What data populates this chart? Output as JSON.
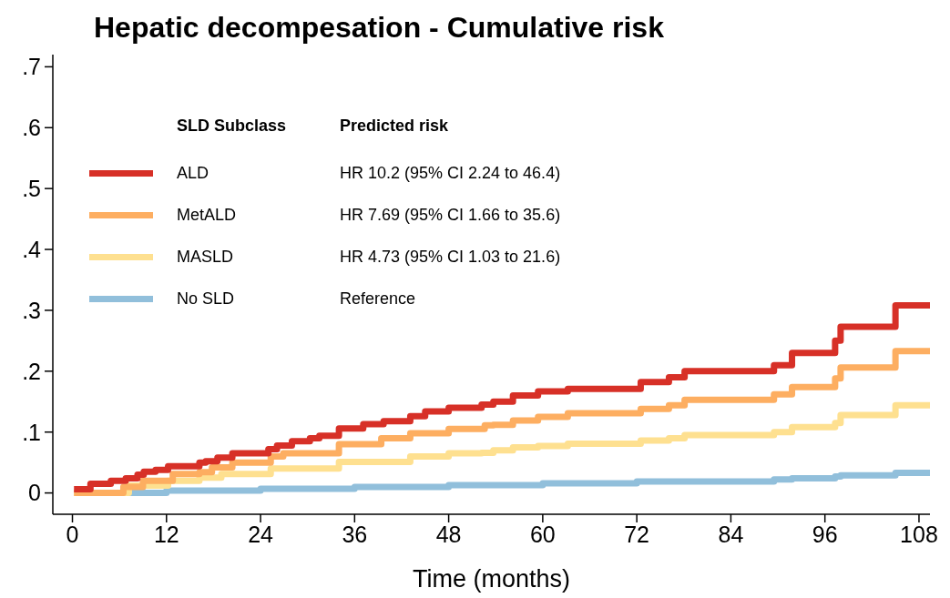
{
  "chart_data": {
    "type": "step",
    "title": "Hepatic decompesation - Cumulative risk",
    "xlabel": "Time (months)",
    "legend_title": "SLD Subclass",
    "legend": "top left",
    "line_style": "solid",
    "marker": "none",
    "annotations": [
      "Predicted risk",
      "HR 10.2 (95% CI 2.24 to 46.4)",
      "HR 7.69 (95% CI 1.66 to 35.6)",
      "HR 4.73 (95% CI 1.03 to 21.6)",
      "Reference"
    ],
    "xlim": [
      -2.5,
      109.4
    ],
    "xticks": [
      0,
      12,
      24,
      36,
      48,
      60,
      72,
      84,
      96,
      108
    ],
    "ylim": [
      -0.035,
      0.72
    ],
    "yticks": [
      0,
      {
        "value": 0.1,
        "label": ".1"
      },
      {
        "value": 0.2,
        "label": ".2"
      },
      {
        "value": 0.3,
        "label": ".3"
      },
      {
        "value": 0.4,
        "label": ".4"
      },
      {
        "value": 0.5,
        "label": ".5"
      },
      {
        "value": 0.6,
        "label": ".6"
      },
      {
        "value": 0.7,
        "label": ".7"
      }
    ],
    "series": [
      {
        "name": "ALD",
        "color": "#d73027",
        "x": [
          0.2,
          2.3,
          4.9,
          6.8,
          8.3,
          9.1,
          10.6,
          12.2,
          16.2,
          17,
          18.5,
          20.4,
          25,
          26.1,
          28,
          30.3,
          31.5,
          34,
          37.1,
          39.7,
          43.1,
          45,
          48,
          52.2,
          53.7,
          56.2,
          59.4,
          63.2,
          72.5,
          76.1,
          78.1,
          89.5,
          91.8,
          97.3,
          98,
          105,
          109.4
        ],
        "values": [
          0.006,
          0.015,
          0.02,
          0.024,
          0.03,
          0.035,
          0.038,
          0.044,
          0.05,
          0.052,
          0.058,
          0.065,
          0.072,
          0.078,
          0.085,
          0.09,
          0.094,
          0.106,
          0.113,
          0.118,
          0.126,
          0.134,
          0.14,
          0.145,
          0.15,
          0.16,
          0.167,
          0.171,
          0.182,
          0.19,
          0.2,
          0.21,
          0.23,
          0.25,
          0.273,
          0.308,
          0.308
        ]
      },
      {
        "name": "MetALD",
        "color": "#fdae61",
        "x": [
          0.2,
          6.5,
          9,
          12.8,
          16.2,
          17.8,
          20.4,
          25.3,
          26.9,
          34,
          39.4,
          43.1,
          48,
          52.6,
          53.7,
          56.2,
          59.4,
          63.2,
          72.5,
          76.1,
          78.1,
          89.5,
          91.8,
          97.3,
          98,
          105,
          109.4
        ],
        "values": [
          0,
          0.01,
          0.02,
          0.031,
          0.034,
          0.042,
          0.05,
          0.06,
          0.065,
          0.08,
          0.09,
          0.098,
          0.105,
          0.111,
          0.112,
          0.119,
          0.125,
          0.131,
          0.138,
          0.144,
          0.153,
          0.162,
          0.174,
          0.188,
          0.206,
          0.233,
          0.233
        ]
      },
      {
        "name": "MASLD",
        "color": "#fee090",
        "x": [
          0.2,
          7.2,
          12.2,
          16.2,
          19,
          25.3,
          34,
          43.1,
          48,
          52.2,
          53.7,
          56.2,
          59.4,
          63.2,
          72.5,
          76.1,
          78.1,
          89.5,
          91.8,
          97.3,
          98,
          105,
          109.4
        ],
        "values": [
          0,
          0.012,
          0.02,
          0.025,
          0.031,
          0.04,
          0.051,
          0.06,
          0.065,
          0.066,
          0.07,
          0.075,
          0.077,
          0.081,
          0.086,
          0.09,
          0.095,
          0.1,
          0.108,
          0.115,
          0.128,
          0.144,
          0.144
        ]
      },
      {
        "name": "No SLD",
        "color": "#91bfdb",
        "x": [
          0.5,
          12,
          24,
          36,
          48,
          60,
          72,
          89.5,
          91.8,
          97.3,
          98,
          105,
          109.4
        ],
        "values": [
          0,
          0.004,
          0.007,
          0.01,
          0.013,
          0.016,
          0.019,
          0.022,
          0.024,
          0.027,
          0.029,
          0.033,
          0.033
        ]
      }
    ]
  }
}
